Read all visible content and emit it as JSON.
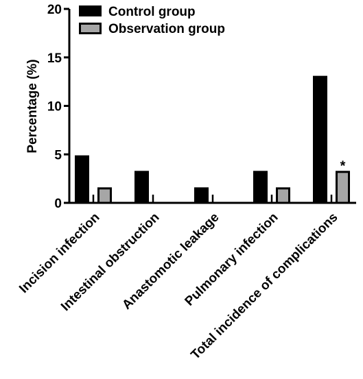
{
  "chart_data": {
    "type": "bar",
    "ylabel": "Percentage (%)",
    "xlabel": "",
    "ylim": [
      0,
      20
    ],
    "yticks": [
      0,
      5,
      10,
      15,
      20
    ],
    "grid": false,
    "legend_position": "top-left",
    "categories": [
      "Incision infection",
      "Intestinal obstruction",
      "Anastomotic leakage",
      "Pulmonary infection",
      "Total incidence of complications"
    ],
    "series": [
      {
        "name": "Control group",
        "color": "#000000",
        "values": [
          4.9,
          3.3,
          1.6,
          3.3,
          13.1
        ]
      },
      {
        "name": "Observation group",
        "color": "#a6a6a6",
        "values": [
          1.6,
          0,
          0,
          1.6,
          3.3
        ]
      }
    ],
    "annotations": [
      {
        "category_index": 4,
        "series_index": 1,
        "text": "*"
      }
    ]
  }
}
